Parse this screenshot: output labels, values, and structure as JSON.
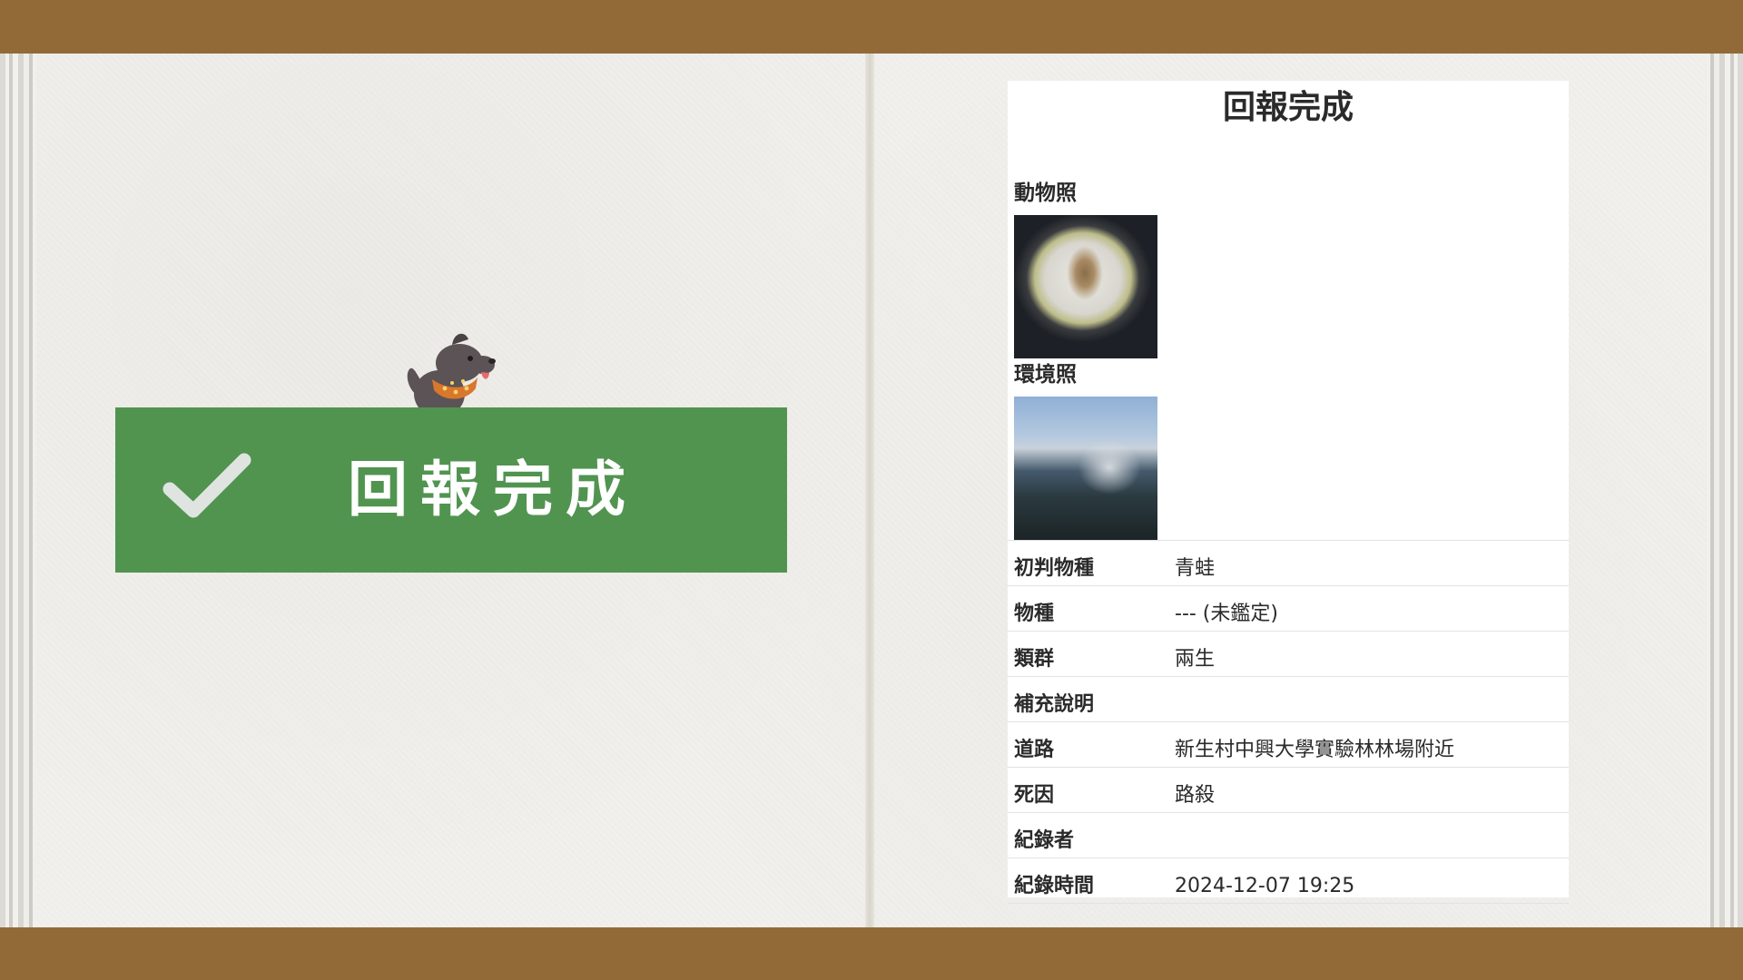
{
  "banner": {
    "title": "回報完成",
    "icon": "check-icon",
    "mascot": "dog-icon",
    "color": "#519450"
  },
  "card": {
    "title": "回報完成",
    "animal_photo_label": "動物照",
    "environment_photo_label": "環境照",
    "fields": [
      {
        "key": "初判物種",
        "value": "青蛙"
      },
      {
        "key": "物種",
        "value": "--- (未鑑定)"
      },
      {
        "key": "類群",
        "value": "兩生"
      },
      {
        "key": "補充說明",
        "value": ""
      },
      {
        "key": "道路",
        "value": "新生村中興大學實驗林林場附近"
      },
      {
        "key": "死因",
        "value": "路殺"
      },
      {
        "key": "紀錄者",
        "value": ""
      },
      {
        "key": "紀錄時間",
        "value": "2024-12-07 19:25"
      }
    ]
  },
  "colors": {
    "frame_bar": "#926a38",
    "paper": "#f1f0ec",
    "banner_green": "#519450"
  }
}
